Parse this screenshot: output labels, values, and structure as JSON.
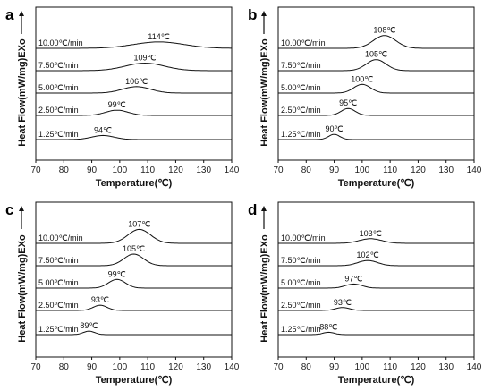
{
  "chart_data": [
    {
      "panel": "a",
      "type": "line",
      "xlabel": "Temperature(℃)",
      "ylabel": "Heat Flow(mW/mg)EXo",
      "xlim": [
        70,
        140
      ],
      "xticks": [
        70,
        80,
        90,
        100,
        110,
        120,
        130,
        140
      ],
      "series": [
        {
          "name": "1.25℃/min",
          "peak_x": 94,
          "peak_label": "94℃",
          "width": 4,
          "height": 0.35
        },
        {
          "name": "2.50℃/min",
          "peak_x": 99,
          "peak_label": "99℃",
          "width": 4,
          "height": 0.45
        },
        {
          "name": "5.00℃/min",
          "peak_x": 106,
          "peak_label": "106℃",
          "width": 5,
          "height": 0.55
        },
        {
          "name": "7.50℃/min",
          "peak_x": 109,
          "peak_label": "109℃",
          "width": 7,
          "height": 0.65
        },
        {
          "name": "10.00℃/min",
          "peak_x": 114,
          "peak_label": "114℃",
          "width": 9,
          "height": 0.55
        }
      ]
    },
    {
      "panel": "b",
      "type": "line",
      "xlabel": "Temperature(℃)",
      "ylabel": "Heat Flow(mW/mg)EXo",
      "xlim": [
        70,
        140
      ],
      "xticks": [
        70,
        80,
        90,
        100,
        110,
        120,
        130,
        140
      ],
      "series": [
        {
          "name": "1.25℃/min",
          "peak_x": 90,
          "peak_label": "90℃",
          "width": 2,
          "height": 0.45
        },
        {
          "name": "2.50℃/min",
          "peak_x": 95,
          "peak_label": "95℃",
          "width": 2.5,
          "height": 0.6
        },
        {
          "name": "5.00℃/min",
          "peak_x": 100,
          "peak_label": "100℃",
          "width": 3,
          "height": 0.75
        },
        {
          "name": "7.50℃/min",
          "peak_x": 105,
          "peak_label": "105℃",
          "width": 3.5,
          "height": 0.95
        },
        {
          "name": "10.00℃/min",
          "peak_x": 108,
          "peak_label": "108℃",
          "width": 4,
          "height": 1.1
        }
      ]
    },
    {
      "panel": "c",
      "type": "line",
      "xlabel": "Temperature(℃)",
      "ylabel": "Heat Flow(mW/mg)EXo",
      "xlim": [
        70,
        140
      ],
      "xticks": [
        70,
        80,
        90,
        100,
        110,
        120,
        130,
        140
      ],
      "series": [
        {
          "name": "1.25℃/min",
          "peak_x": 89,
          "peak_label": "89℃",
          "width": 2,
          "height": 0.3
        },
        {
          "name": "2.50℃/min",
          "peak_x": 93,
          "peak_label": "93℃",
          "width": 2.5,
          "height": 0.45
        },
        {
          "name": "5.00℃/min",
          "peak_x": 99,
          "peak_label": "99℃",
          "width": 3,
          "height": 0.75
        },
        {
          "name": "7.50℃/min",
          "peak_x": 105,
          "peak_label": "105℃",
          "width": 3.5,
          "height": 1.0
        },
        {
          "name": "10.00℃/min",
          "peak_x": 107,
          "peak_label": "107℃",
          "width": 4,
          "height": 1.2
        }
      ]
    },
    {
      "panel": "d",
      "type": "line",
      "xlabel": "Temperature(℃)",
      "ylabel": "Heat Flow(mW/mg)EXo",
      "xlim": [
        70,
        140
      ],
      "xticks": [
        70,
        80,
        90,
        100,
        110,
        120,
        130,
        140
      ],
      "series": [
        {
          "name": "1.25℃/min",
          "peak_x": 88,
          "peak_label": "88℃",
          "width": 2,
          "height": 0.2
        },
        {
          "name": "2.50℃/min",
          "peak_x": 93,
          "peak_label": "93℃",
          "width": 2.5,
          "height": 0.25
        },
        {
          "name": "5.00℃/min",
          "peak_x": 97,
          "peak_label": "97℃",
          "width": 3,
          "height": 0.35
        },
        {
          "name": "7.50℃/min",
          "peak_x": 102,
          "peak_label": "102℃",
          "width": 3.5,
          "height": 0.45
        },
        {
          "name": "10.00℃/min",
          "peak_x": 103,
          "peak_label": "103℃",
          "width": 4,
          "height": 0.4
        }
      ]
    }
  ]
}
